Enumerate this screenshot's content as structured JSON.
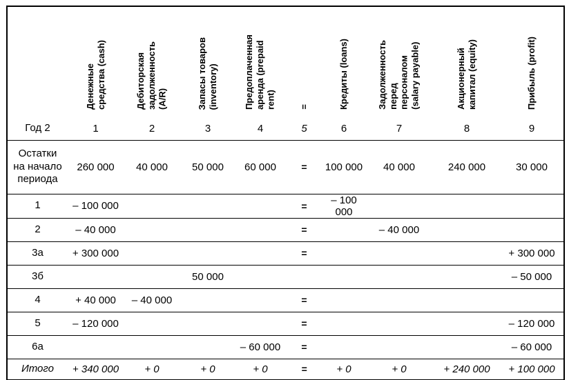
{
  "page": {
    "background": "#ffffff",
    "text_color": "#000000",
    "border_color": "#000000"
  },
  "table": {
    "columns": [
      {
        "label": "Денежные\nсредства (cash)"
      },
      {
        "label": "Дебиторская\nзадолженность\n(A/R)"
      },
      {
        "label": "Запасы товаров\n(inventory)"
      },
      {
        "label": "Предоплаченная\nаренда (prepaid\nrent)"
      },
      {
        "label": "="
      },
      {
        "label": "Кредиты (loans)"
      },
      {
        "label": "Задолженность\nперед\nперсоналом\n(salary payable)"
      },
      {
        "label": "Акционерный\nкапитал (equity)"
      },
      {
        "label": "Прибыль (profit)"
      }
    ],
    "rows": [
      {
        "kind": "colnums",
        "label": "Год 2",
        "cells": [
          "1",
          "2",
          "3",
          "4",
          "5",
          "6",
          "7",
          "8",
          "9"
        ]
      },
      {
        "kind": "opening",
        "label": "Остатки\nна начало\nпериода",
        "cells": [
          "260 000",
          "40 000",
          "50 000",
          "60 000",
          "=",
          "100 000",
          "40 000",
          "240 000",
          "30 000"
        ]
      },
      {
        "kind": "op",
        "label": "1",
        "cells": [
          "– 100 000",
          "",
          "",
          "",
          "=",
          "– 100 000",
          "",
          "",
          ""
        ]
      },
      {
        "kind": "op",
        "label": "2",
        "cells": [
          "– 40 000",
          "",
          "",
          "",
          "=",
          "",
          "– 40 000",
          "",
          ""
        ]
      },
      {
        "kind": "op",
        "label": "3а",
        "cells": [
          "+ 300 000",
          "",
          "",
          "",
          "=",
          "",
          "",
          "",
          "+ 300 000"
        ]
      },
      {
        "kind": "op",
        "label": "3б",
        "cells": [
          "",
          "",
          "50 000",
          "",
          "",
          "",
          "",
          "",
          "– 50 000"
        ]
      },
      {
        "kind": "op",
        "label": "4",
        "cells": [
          "+ 40 000",
          "– 40 000",
          "",
          "",
          "=",
          "",
          "",
          "",
          ""
        ]
      },
      {
        "kind": "op",
        "label": "5",
        "cells": [
          "– 120 000",
          "",
          "",
          "",
          "=",
          "",
          "",
          "",
          "– 120 000"
        ]
      },
      {
        "kind": "op",
        "label": "6а",
        "cells": [
          "",
          "",
          "",
          "– 60 000",
          "=",
          "",
          "",
          "",
          "– 60 000"
        ]
      },
      {
        "kind": "total",
        "label": "Итого",
        "cells": [
          "+ 340 000",
          "+ 0",
          "+ 0",
          "+ 0",
          "=",
          "+ 0",
          "+ 0",
          "+ 240 000",
          "+ 100 000"
        ]
      }
    ]
  }
}
